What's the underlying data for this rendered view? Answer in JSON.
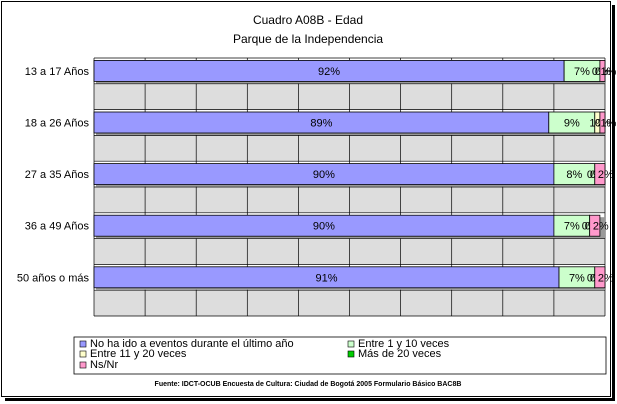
{
  "chart_data": {
    "type": "bar",
    "orientation": "horizontal",
    "stacked": true,
    "title": "Cuadro A08B - Edad",
    "subtitle": "Parque de la Independencia",
    "categories": [
      "13 a 17 Años",
      "18 a 26 Años",
      "27 a 35 Años",
      "36 a 49 Años",
      "50 años o más"
    ],
    "series": [
      {
        "name": "No ha ido a eventos durante el último año",
        "color": "#9999ff",
        "values": [
          92,
          89,
          90,
          90,
          91
        ],
        "labels": [
          "92%",
          "89%",
          "90%",
          "90%",
          "91%"
        ]
      },
      {
        "name": "Entre 1 y 10 veces",
        "color": "#ccffcc",
        "values": [
          7,
          9,
          8,
          7,
          7
        ],
        "labels": [
          "7%",
          "9%",
          "8%",
          "7%",
          "7%"
        ]
      },
      {
        "name": "Entre 11 y 20 veces",
        "color": "#ffffcc",
        "values": [
          0,
          1,
          0,
          0,
          0
        ],
        "labels": [
          "0%",
          "1%",
          "0%",
          "0%",
          "0%"
        ]
      },
      {
        "name": "Más de 20 veces",
        "color": "#00cc00",
        "values": [
          0,
          0,
          0,
          0,
          0
        ],
        "labels": [
          "0%",
          "0%",
          "0%",
          "0%",
          "0%"
        ]
      },
      {
        "name": "Ns/Nr",
        "color": "#ff99cc",
        "values": [
          1,
          1,
          2,
          2,
          2
        ],
        "labels": [
          "1%",
          "1%",
          "2%",
          "2%",
          "2%"
        ]
      }
    ],
    "xlim": [
      0,
      100
    ],
    "grid": true,
    "legend": "bottom",
    "source": "Fuente: IDCT-OCUB Encuesta de Cultura: Ciudad de Bogotá 2005 Formulario Básico BAC8B"
  }
}
